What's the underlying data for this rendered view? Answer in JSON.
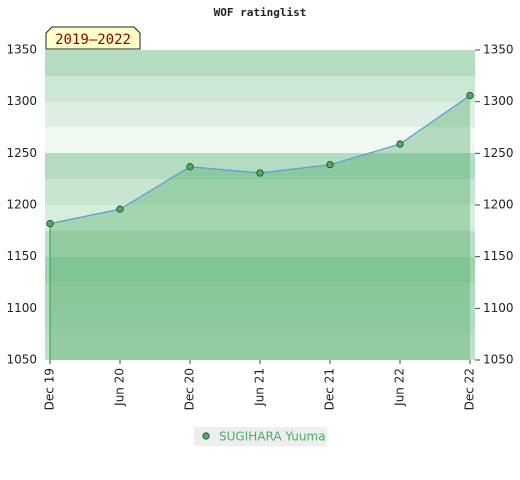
{
  "chart_data": {
    "type": "line",
    "title": "WOF ratinglist",
    "annotation": "2019–2022",
    "categories": [
      "Dec 19",
      "Jun 20",
      "Dec 20",
      "Jun 21",
      "Dec 21",
      "Jun 22",
      "Dec 22"
    ],
    "series": [
      {
        "name": "SUGIHARA Yuuma",
        "color": "#5b9bd5",
        "marker_color": "#4caf60",
        "values": [
          1182,
          1196,
          1237,
          1231,
          1239,
          1259,
          1306
        ]
      }
    ],
    "ylim": [
      1050,
      1350
    ],
    "yticks": [
      1050,
      1100,
      1150,
      1200,
      1250,
      1300,
      1350
    ]
  }
}
